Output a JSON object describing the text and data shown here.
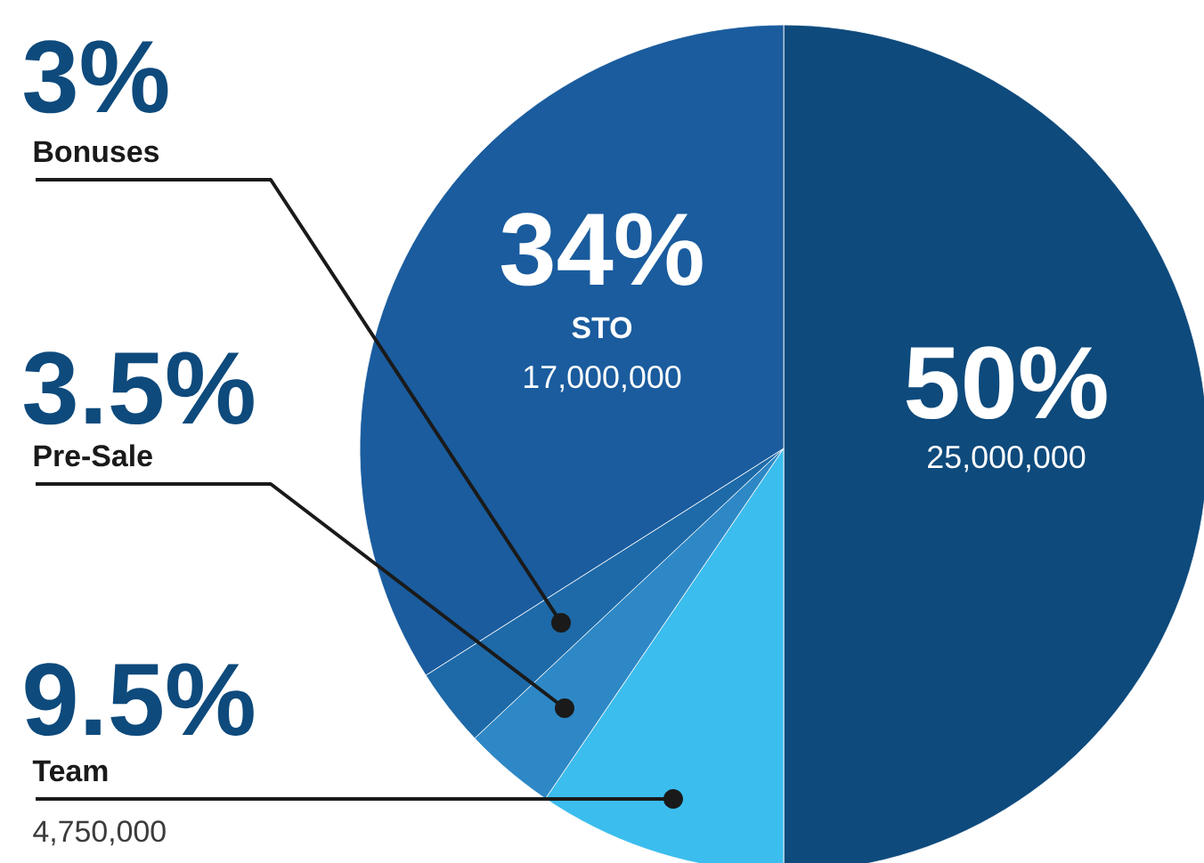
{
  "chart_data": {
    "type": "pie",
    "categories": [
      null,
      "Team",
      "Pre-Sale",
      "Bonuses",
      "STO"
    ],
    "values": [
      50,
      9.5,
      3.5,
      3,
      34
    ],
    "value_labels": [
      "50%",
      "9.5%",
      "3.5%",
      "3%",
      "34%"
    ],
    "colors": [
      "#0e4a7c",
      "#3bbdee",
      "#2e88c6",
      "#1e6aa8",
      "#1a5c9e"
    ],
    "annotations": [
      "25,000,000",
      "4,750,000",
      "17,000,000"
    ]
  }
}
